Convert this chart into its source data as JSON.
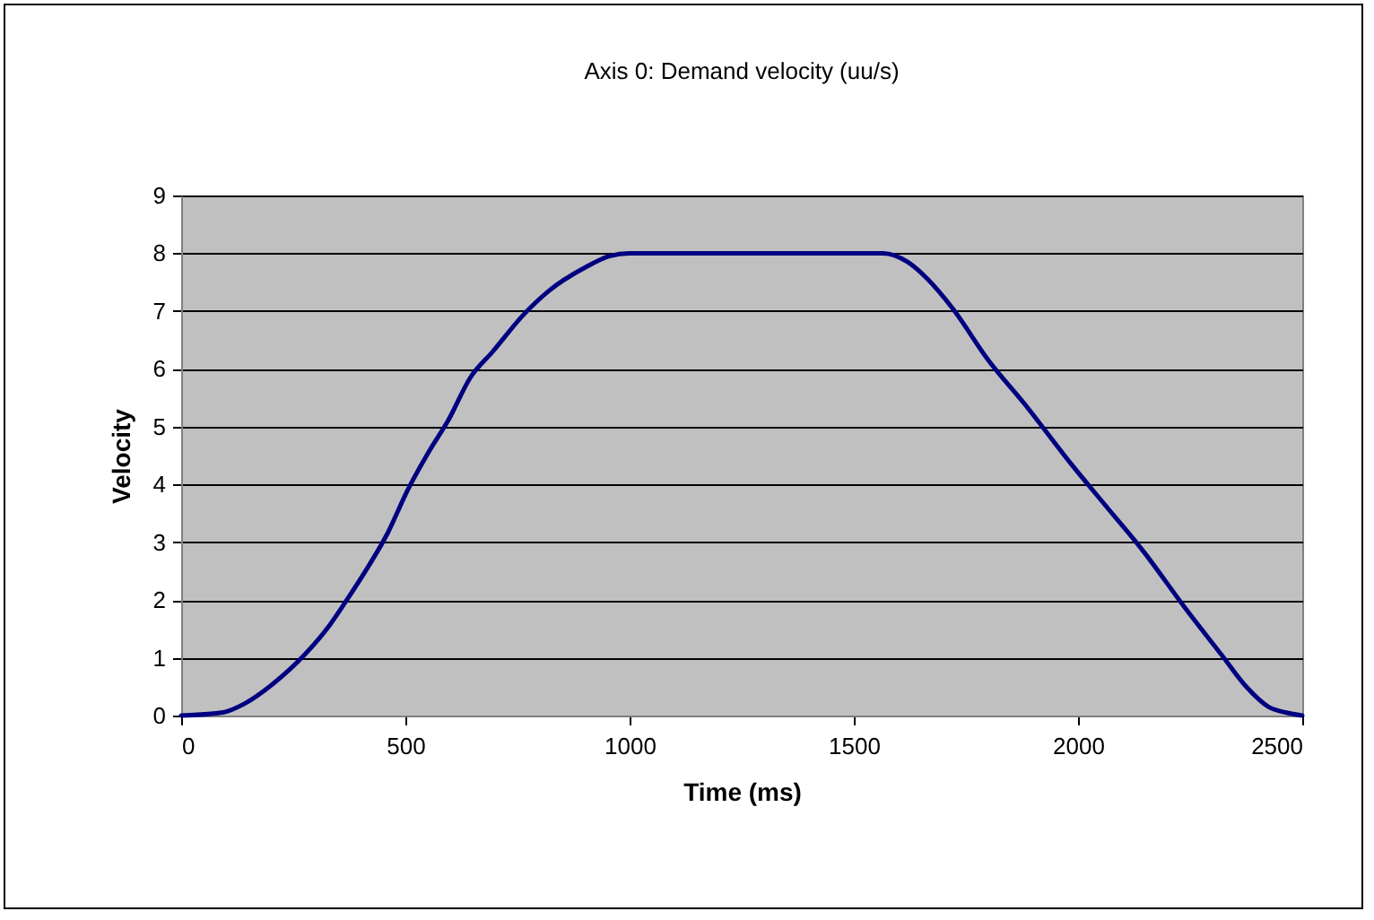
{
  "chart_data": {
    "type": "line",
    "title": "Axis 0: Demand velocity (uu/s)",
    "xlabel": "Time (ms)",
    "ylabel": "Velocity",
    "x": [
      0,
      90,
      140,
      205,
      275,
      325,
      365,
      415,
      460,
      505,
      555,
      595,
      645,
      695,
      765,
      820,
      900,
      955,
      1000,
      1250,
      1565,
      1620,
      1665,
      1720,
      1800,
      1880,
      1985,
      2065,
      2145,
      2240,
      2320,
      2375,
      2425,
      2465,
      2500
    ],
    "series": [
      {
        "color": "#000080",
        "values": [
          0,
          0.05,
          0.2,
          0.55,
          1.05,
          1.5,
          1.95,
          2.55,
          3.15,
          3.9,
          4.6,
          5.1,
          5.85,
          6.3,
          6.95,
          7.35,
          7.75,
          7.95,
          8,
          8,
          8,
          7.85,
          7.55,
          7.05,
          6.15,
          5.4,
          4.35,
          3.6,
          2.85,
          1.85,
          1.05,
          0.5,
          0.15,
          0.05,
          0
        ]
      }
    ],
    "xlim": [
      0,
      2500
    ],
    "xticks": [
      0,
      500,
      1000,
      1500,
      2000,
      2500
    ],
    "ylim": [
      0,
      9
    ],
    "yticks": [
      0,
      1,
      2,
      3,
      4,
      5,
      6,
      7,
      8,
      9
    ],
    "grid": "y",
    "marker": "none",
    "line_style": "solid"
  }
}
